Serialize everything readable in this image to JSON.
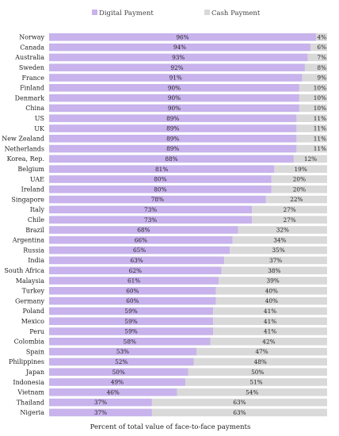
{
  "chart_data": {
    "type": "bar",
    "orientation": "horizontal",
    "stacked": true,
    "xlabel": "Percent of total value of face-to-face payments",
    "legend_position": "top-center",
    "xlim": [
      0,
      100
    ],
    "grid": false,
    "categories": [
      "Norway",
      "Canada",
      "Australia",
      "Sweden",
      "France",
      "Finland",
      "Denmark",
      "China",
      "US",
      "UK",
      "New Zealand",
      "Netherlands",
      "Korea, Rep.",
      "Belgium",
      "UAE",
      "Ireland",
      "Singapore",
      "Italy",
      "Chile",
      "Brazil",
      "Argentina",
      "Russia",
      "India",
      "South Africa",
      "Malaysia",
      "Turkey",
      "Germany",
      "Poland",
      "Mexico",
      "Peru",
      "Colombia",
      "Spain",
      "Philippines",
      "Japan",
      "Indonesia",
      "Vietnam",
      "Thailand",
      "Nigeria"
    ],
    "series": [
      {
        "name": "Digital Payment",
        "color": "#c8b3ec",
        "values": [
          96,
          94,
          93,
          92,
          91,
          90,
          90,
          90,
          89,
          89,
          89,
          89,
          88,
          81,
          80,
          80,
          78,
          73,
          73,
          68,
          66,
          65,
          63,
          62,
          61,
          60,
          60,
          59,
          59,
          59,
          58,
          53,
          52,
          50,
          49,
          46,
          37,
          37
        ],
        "labels": [
          "96%",
          "94%",
          "93%",
          "92%",
          "91%",
          "90%",
          "90%",
          "90%",
          "89%",
          "89%",
          "89%",
          "89%",
          "88%",
          "81%",
          "80%",
          "80%",
          "78%",
          "73%",
          "73%",
          "68%",
          "66%",
          "65%",
          "63%",
          "62%",
          "61%",
          "60%",
          "60%",
          "59%",
          "59%",
          "59%",
          "58%",
          "53%",
          "52%",
          "50%",
          "49%",
          "46%",
          "37%",
          "37%"
        ]
      },
      {
        "name": "Cash Payment",
        "color": "#d9d9d9",
        "values": [
          4,
          6,
          7,
          8,
          9,
          10,
          10,
          10,
          11,
          11,
          11,
          11,
          12,
          19,
          20,
          20,
          22,
          27,
          27,
          32,
          34,
          35,
          37,
          38,
          39,
          40,
          40,
          41,
          41,
          41,
          42,
          47,
          48,
          50,
          51,
          54,
          63,
          63
        ],
        "labels": [
          "4%",
          "6%",
          "7%",
          "8%",
          "9%",
          "10%",
          "10%",
          "10%",
          "11%",
          "11%",
          "11%",
          "11%",
          "12%",
          "19%",
          "20%",
          "20%",
          "22%",
          "27%",
          "27%",
          "32%",
          "34%",
          "35%",
          "37%",
          "38%",
          "39%",
          "40%",
          "40%",
          "41%",
          "41%",
          "41%",
          "42%",
          "47%",
          "48%",
          "50%",
          "51%",
          "54%",
          "63%",
          "63%"
        ]
      }
    ]
  }
}
